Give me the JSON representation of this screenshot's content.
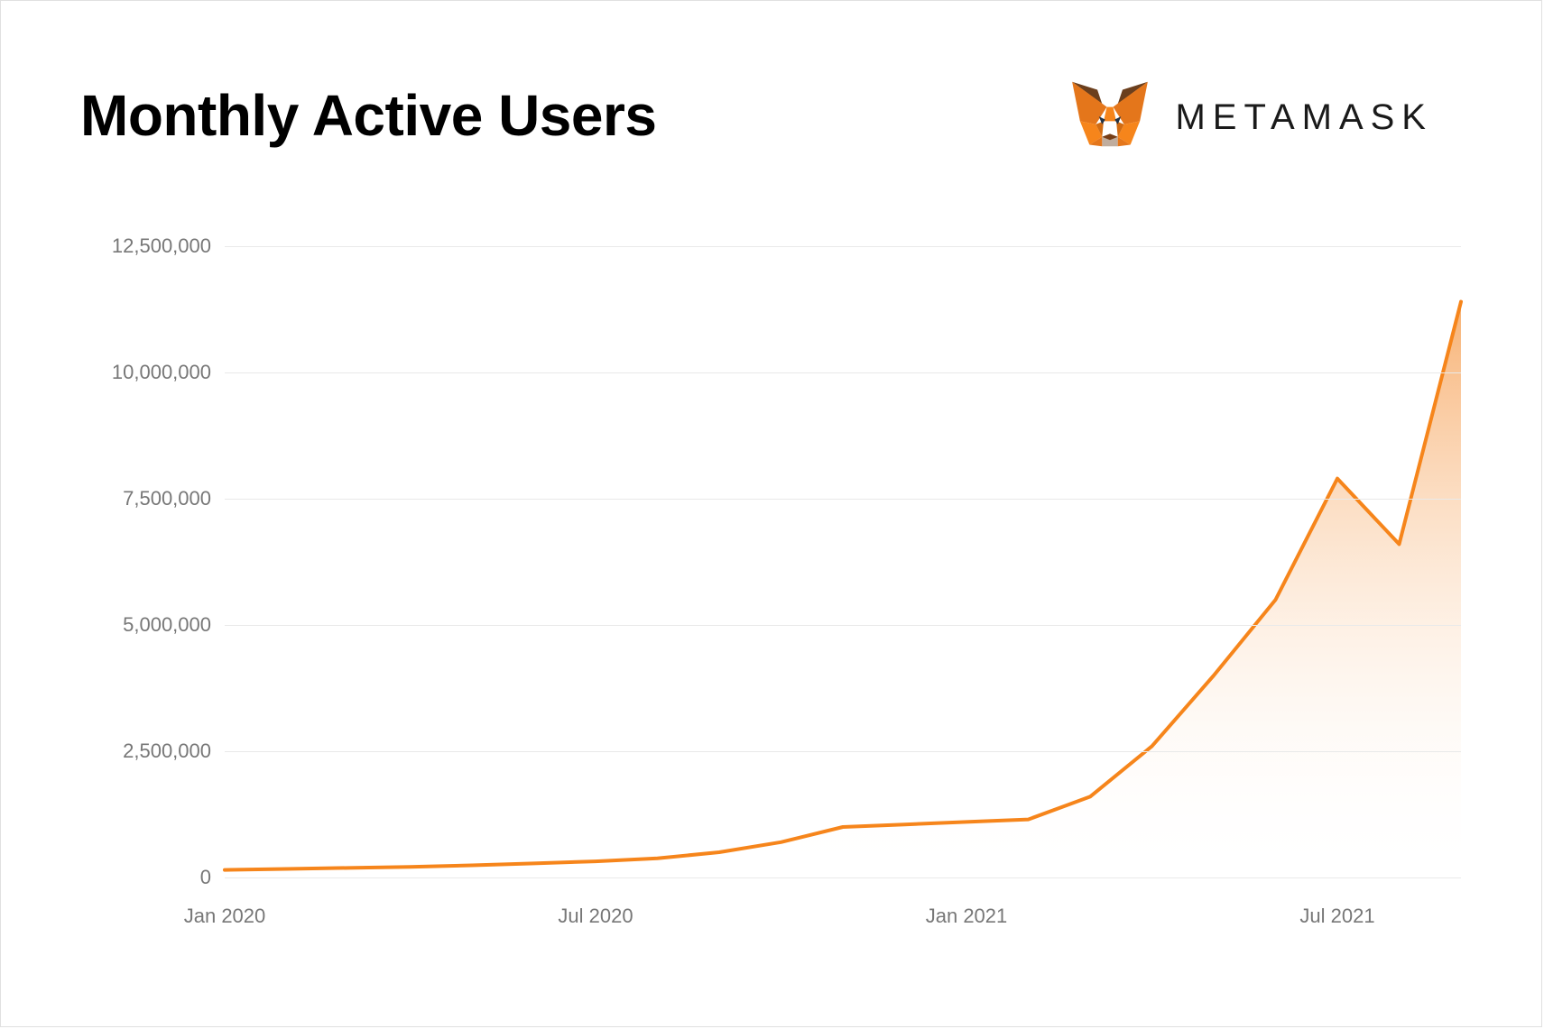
{
  "title": "Monthly Active Users",
  "brand": {
    "name": "METAMASK",
    "icon_name": "metamask-fox-icon",
    "icon_colors": {
      "outer": "#e2761b",
      "mid": "#e4761b",
      "light": "#f6851b",
      "cheek": "#d16b12",
      "muzzle": "#c0ad9e",
      "mouth": "#763d16",
      "eye": "#233447",
      "ear_dark": "#6b3f1d"
    }
  },
  "chart": {
    "type": "area",
    "line_color": "#f6851b",
    "line_width": 4,
    "fill_top_color": "#f6a45b",
    "fill_top_opacity": 0.85,
    "fill_bottom_color": "#ffffff",
    "fill_bottom_opacity": 0.0,
    "background_color": "#ffffff",
    "grid_color": "#e9e9e9",
    "axis_label_color": "#777777",
    "axis_label_fontsize": 22,
    "y": {
      "min": 0,
      "max": 12500000,
      "ticks": [
        0,
        2500000,
        5000000,
        7500000,
        10000000,
        12500000
      ],
      "tick_labels": [
        "0",
        "2,500,000",
        "5,000,000",
        "7,500,000",
        "10,000,000",
        "12,500,000"
      ]
    },
    "x": {
      "min": 0,
      "max": 20,
      "ticks": [
        0,
        6,
        12,
        18
      ],
      "tick_labels": [
        "Jan 2020",
        "Jul 2020",
        "Jan 2021",
        "Jul 2021"
      ]
    },
    "series": {
      "x": [
        0,
        1,
        2,
        3,
        4,
        5,
        6,
        7,
        8,
        9,
        10,
        11,
        12,
        13,
        14,
        15,
        16,
        17,
        18,
        19,
        20
      ],
      "y": [
        150000,
        170000,
        190000,
        210000,
        240000,
        280000,
        320000,
        380000,
        500000,
        700000,
        1000000,
        1050000,
        1100000,
        1150000,
        1600000,
        2600000,
        4000000,
        5500000,
        7900000,
        6600000,
        11400000
      ]
    }
  }
}
